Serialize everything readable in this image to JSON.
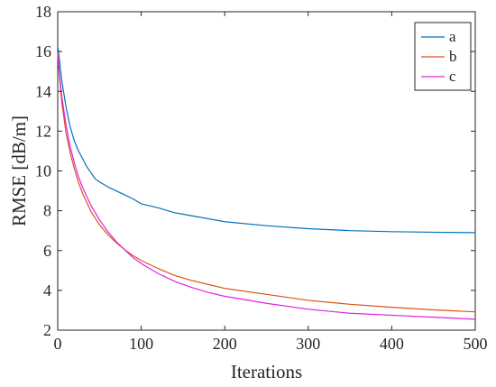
{
  "chart_data": {
    "type": "line",
    "title": "",
    "xlabel": "Iterations",
    "ylabel": "RMSE [dB/m]",
    "xlim": [
      0,
      500
    ],
    "ylim": [
      2,
      18
    ],
    "xticks": [
      0,
      100,
      200,
      300,
      400,
      500
    ],
    "yticks": [
      2,
      4,
      6,
      8,
      10,
      12,
      14,
      16,
      18
    ],
    "grid": false,
    "legend": "top-right",
    "series": [
      {
        "name": "a",
        "color": "#0072BD",
        "x": [
          0,
          2,
          5,
          10,
          15,
          20,
          25,
          30,
          35,
          40,
          45,
          50,
          60,
          70,
          80,
          90,
          100,
          120,
          140,
          160,
          180,
          200,
          250,
          300,
          350,
          400,
          450,
          500
        ],
        "y": [
          16.3,
          15.6,
          14.5,
          13.2,
          12.2,
          11.5,
          11.0,
          10.6,
          10.2,
          9.9,
          9.6,
          9.45,
          9.2,
          9.0,
          8.8,
          8.6,
          8.35,
          8.15,
          7.9,
          7.75,
          7.6,
          7.45,
          7.25,
          7.1,
          7.0,
          6.95,
          6.92,
          6.9
        ]
      },
      {
        "name": "b",
        "color": "#D95319",
        "x": [
          0,
          2,
          5,
          10,
          15,
          20,
          25,
          30,
          40,
          50,
          60,
          70,
          80,
          90,
          100,
          120,
          140,
          160,
          180,
          200,
          250,
          300,
          350,
          400,
          450,
          500
        ],
        "y": [
          16.0,
          14.8,
          13.4,
          11.9,
          10.9,
          10.1,
          9.4,
          8.85,
          7.95,
          7.3,
          6.8,
          6.4,
          6.05,
          5.75,
          5.5,
          5.1,
          4.75,
          4.5,
          4.3,
          4.1,
          3.8,
          3.5,
          3.3,
          3.15,
          3.02,
          2.92
        ]
      },
      {
        "name": "c",
        "color": "#E020E0",
        "x": [
          0,
          2,
          5,
          10,
          15,
          20,
          25,
          30,
          40,
          50,
          60,
          70,
          80,
          90,
          100,
          120,
          140,
          160,
          180,
          200,
          250,
          300,
          350,
          400,
          450,
          500
        ],
        "y": [
          15.8,
          14.9,
          13.7,
          12.3,
          11.2,
          10.4,
          9.7,
          9.15,
          8.25,
          7.55,
          6.95,
          6.45,
          6.05,
          5.65,
          5.35,
          4.85,
          4.45,
          4.15,
          3.9,
          3.7,
          3.35,
          3.05,
          2.85,
          2.75,
          2.65,
          2.55
        ]
      }
    ]
  }
}
